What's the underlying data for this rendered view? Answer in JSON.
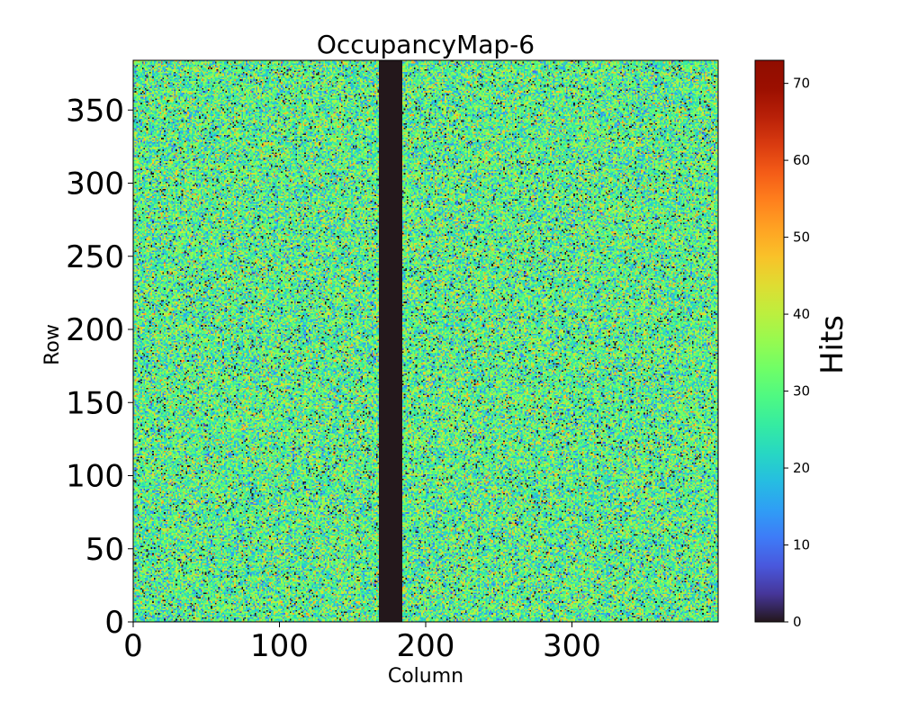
{
  "chart_data": {
    "type": "heatmap",
    "title": "OccupancyMap-6",
    "xlabel": "Column",
    "ylabel": "Row",
    "xlim": [
      0,
      400
    ],
    "ylim": [
      0,
      384
    ],
    "x_ticks": [
      0,
      100,
      200,
      300
    ],
    "y_ticks": [
      0,
      50,
      100,
      150,
      200,
      250,
      300,
      350
    ],
    "grid_size": {
      "columns": 400,
      "rows": 384
    },
    "dead_columns_range": [
      168,
      184
    ],
    "dead_columns_value": 0,
    "colormap": "turbo",
    "colorbar": {
      "label": "Hits",
      "range": [
        0,
        73
      ],
      "ticks": [
        0,
        10,
        20,
        30,
        40,
        50,
        60,
        70
      ]
    }
  }
}
